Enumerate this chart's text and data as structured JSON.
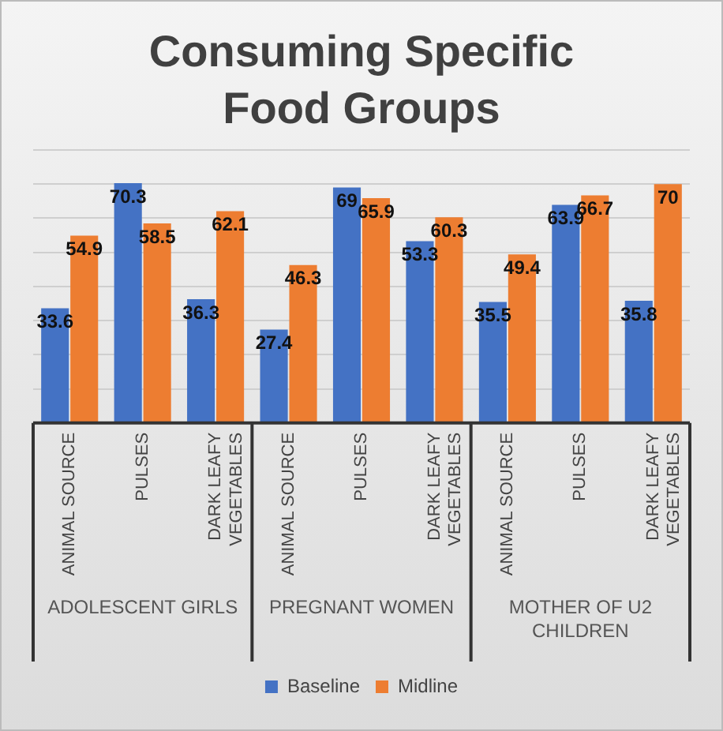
{
  "chart_data": {
    "type": "bar",
    "title": "Consuming Specific Food Groups",
    "categories": [
      "ANIMAL SOURCE",
      "PULSES",
      "DARK LEAFY VEGETABLES",
      "ANIMAL SOURCE",
      "PULSES",
      "DARK LEAFY VEGETABLES",
      "ANIMAL SOURCE",
      "PULSES",
      "DARK LEAFY VEGETABLES"
    ],
    "series": [
      {
        "name": "Baseline",
        "color": "#4472c4",
        "values": [
          33.6,
          70.3,
          36.3,
          27.4,
          69,
          53.3,
          35.5,
          63.9,
          35.8
        ]
      },
      {
        "name": "Midline",
        "color": "#ed7d31",
        "values": [
          54.9,
          58.5,
          62.1,
          46.3,
          65.9,
          60.3,
          49.4,
          66.7,
          70
        ]
      }
    ],
    "annotations": [
      "ADOLESCENT GIRLS",
      "PREGNANT WOMEN",
      "MOTHER OF U2 CHILDREN"
    ],
    "ylim": [
      0,
      80
    ],
    "yticks": [
      {
        "value": 0,
        "label": null
      },
      {
        "value": 10,
        "label": null
      },
      {
        "value": 20,
        "label": null
      },
      {
        "value": 30,
        "label": null
      },
      {
        "value": 40,
        "label": null
      },
      {
        "value": 50,
        "label": null
      },
      {
        "value": 60,
        "label": null
      },
      {
        "value": 70,
        "label": null
      },
      {
        "value": 80,
        "label": null
      }
    ],
    "tick_labels": "x",
    "grid": "y",
    "data_labels": true,
    "legend": "bottom"
  }
}
